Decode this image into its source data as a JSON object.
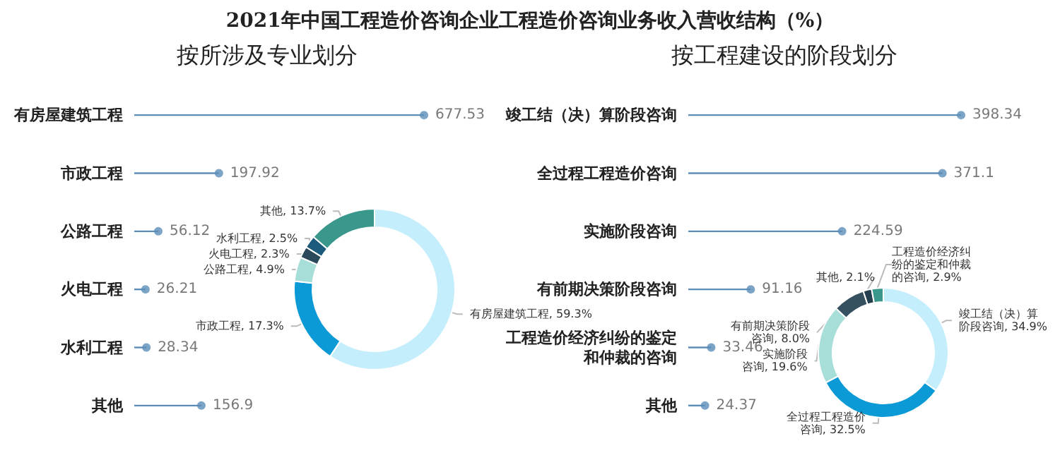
{
  "chart_data": [
    {
      "type": "lollipop",
      "title": "2021年中国工程造价咨询企业工程造价咨询业务收入营收结构（%）",
      "subtitle": "按所涉及专业划分",
      "orientation": "horizontal",
      "categories": [
        "有房屋建筑工程",
        "市政工程",
        "公路工程",
        "火电工程",
        "水利工程",
        "其他"
      ],
      "values": [
        677.53,
        197.92,
        56.12,
        26.21,
        28.34,
        156.9
      ],
      "color": "#5b8db8",
      "data_labels": true,
      "legend": false,
      "grid": false
    },
    {
      "type": "donut",
      "categories": [
        "有房屋建筑工程",
        "市政工程",
        "公路工程",
        "火电工程",
        "水利工程",
        "其他"
      ],
      "values": [
        59.3,
        17.3,
        4.9,
        2.3,
        2.5,
        13.7
      ],
      "value_labels": [
        "59.3%",
        "17.3%",
        "4.9%",
        "2.3%",
        "2.5%",
        "13.7%"
      ],
      "colors": [
        "#c4eefc",
        "#0b9ad6",
        "#a8ded8",
        "#2a4a5c",
        "#1d5b7c",
        "#3a978c"
      ],
      "legend": false
    },
    {
      "type": "lollipop",
      "subtitle": "按工程建设的阶段划分",
      "orientation": "horizontal",
      "categories": [
        "竣工结（决）算阶段咨询",
        "全过程工程造价咨询",
        "实施阶段咨询",
        "有前期决策阶段咨询",
        "工程造价经济纠纷的鉴定和仲裁的咨询",
        "其他"
      ],
      "values": [
        398.34,
        371.1,
        224.59,
        91.16,
        33.46,
        24.37
      ],
      "color": "#5b8db8",
      "data_labels": true,
      "legend": false,
      "grid": false
    },
    {
      "type": "donut",
      "categories": [
        "竣工结（决）算阶段咨询",
        "全过程工程造价咨询",
        "实施阶段咨询",
        "有前期决策阶段咨询",
        "其他",
        "工程造价经济纠纷的鉴定和仲裁的咨询"
      ],
      "values": [
        34.9,
        32.5,
        19.6,
        8.0,
        2.1,
        2.9
      ],
      "value_labels": [
        "34.9%",
        "32.5%",
        "19.6%",
        "8.0%",
        "2.1%",
        "2.9%"
      ],
      "colors": [
        "#c4eefc",
        "#0b9ad6",
        "#a8ded8",
        "#35505e",
        "#24404f",
        "#3a978c"
      ],
      "legend": false
    }
  ]
}
